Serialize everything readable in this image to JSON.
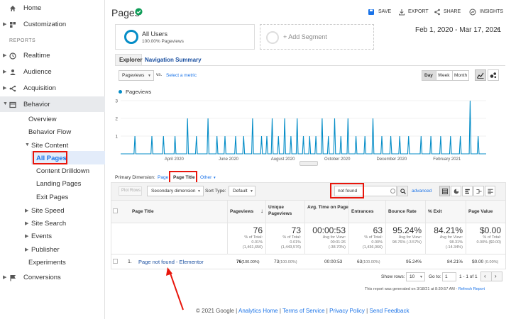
{
  "sidebar": {
    "items": [
      {
        "label": "Home"
      },
      {
        "label": "Customization"
      },
      {
        "label": "REPORTS"
      },
      {
        "label": "Realtime"
      },
      {
        "label": "Audience"
      },
      {
        "label": "Acquisition"
      },
      {
        "label": "Behavior"
      },
      {
        "label": "Overview"
      },
      {
        "label": "Behavior Flow"
      },
      {
        "label": "Site Content"
      },
      {
        "label": "All Pages"
      },
      {
        "label": "Content Drilldown"
      },
      {
        "label": "Landing Pages"
      },
      {
        "label": "Exit Pages"
      },
      {
        "label": "Site Speed"
      },
      {
        "label": "Site Search"
      },
      {
        "label": "Events"
      },
      {
        "label": "Publisher"
      },
      {
        "label": "Experiments"
      },
      {
        "label": "Conversions"
      }
    ]
  },
  "header": {
    "title": "Pages",
    "save": "SAVE",
    "export": "EXPORT",
    "share": "SHARE",
    "insights": "INSIGHTS"
  },
  "segment": {
    "name": "All Users",
    "sub": "100.00% Pageviews",
    "add": "+ Add Segment"
  },
  "date_range": "Feb 1, 2020 - Mar 17, 2021",
  "tabs": [
    "Explorer",
    "Navigation Summary"
  ],
  "chart_controls": {
    "metric": "Pageviews",
    "vs": "vs.",
    "select_metric": "Select a metric",
    "day": "Day",
    "week": "Week",
    "month": "Month"
  },
  "chart_data": {
    "type": "line",
    "series": [
      {
        "name": "Pageviews"
      }
    ],
    "x_ticks": [
      "April 2020",
      "June 2020",
      "August 2020",
      "October 2020",
      "December 2020",
      "February 2021"
    ],
    "y_ticks": [
      "3",
      "2",
      "1"
    ],
    "ylim": [
      0,
      3
    ],
    "color": "#058dc7",
    "spikes": [
      {
        "x": "2020-02-17",
        "y": 1
      },
      {
        "x": "2020-03-07",
        "y": 1
      },
      {
        "x": "2020-03-20",
        "y": 1
      },
      {
        "x": "2020-04-02",
        "y": 1
      },
      {
        "x": "2020-04-16",
        "y": 2
      },
      {
        "x": "2020-04-26",
        "y": 1
      },
      {
        "x": "2020-05-09",
        "y": 2
      },
      {
        "x": "2020-05-19",
        "y": 1
      },
      {
        "x": "2020-05-28",
        "y": 1
      },
      {
        "x": "2020-06-09",
        "y": 1
      },
      {
        "x": "2020-06-18",
        "y": 1
      },
      {
        "x": "2020-06-28",
        "y": 2
      },
      {
        "x": "2020-07-08",
        "y": 1
      },
      {
        "x": "2020-07-14",
        "y": 1
      },
      {
        "x": "2020-07-20",
        "y": 2
      },
      {
        "x": "2020-07-27",
        "y": 1
      },
      {
        "x": "2020-08-03",
        "y": 2
      },
      {
        "x": "2020-08-10",
        "y": 1
      },
      {
        "x": "2020-08-17",
        "y": 2
      },
      {
        "x": "2020-08-24",
        "y": 1
      },
      {
        "x": "2020-08-31",
        "y": 1
      },
      {
        "x": "2020-09-07",
        "y": 1
      },
      {
        "x": "2020-09-14",
        "y": 2
      },
      {
        "x": "2020-09-21",
        "y": 1
      },
      {
        "x": "2020-09-28",
        "y": 2
      },
      {
        "x": "2020-10-05",
        "y": 1
      },
      {
        "x": "2020-10-13",
        "y": 2
      },
      {
        "x": "2020-10-22",
        "y": 1
      },
      {
        "x": "2020-11-01",
        "y": 1
      },
      {
        "x": "2020-11-10",
        "y": 2
      },
      {
        "x": "2020-11-20",
        "y": 1
      },
      {
        "x": "2020-11-30",
        "y": 1
      },
      {
        "x": "2020-12-10",
        "y": 1
      },
      {
        "x": "2020-12-20",
        "y": 1
      },
      {
        "x": "2021-01-03",
        "y": 1
      },
      {
        "x": "2021-01-14",
        "y": 1
      },
      {
        "x": "2021-01-25",
        "y": 1
      },
      {
        "x": "2021-02-05",
        "y": 1
      },
      {
        "x": "2021-02-16",
        "y": 1
      },
      {
        "x": "2021-02-27",
        "y": 3
      },
      {
        "x": "2021-03-08",
        "y": 1
      }
    ]
  },
  "dimension": {
    "label": "Primary Dimension:",
    "page": "Page",
    "page_title": "Page Title",
    "other": "Other"
  },
  "toolbar": {
    "plot_rows": "Plot Rows",
    "secondary": "Secondary dimension",
    "sort_type": "Sort Type:",
    "sort_default": "Default",
    "search_value": "not found",
    "advanced": "advanced"
  },
  "table": {
    "headers": [
      "Page Title",
      "Pageviews",
      "Unique Pageviews",
      "Avg. Time on Page",
      "Entrances",
      "Bounce Rate",
      "% Exit",
      "Page Value"
    ],
    "totals": [
      {
        "value": "76",
        "l1": "% of Total:",
        "l2": "0.01%",
        "l3": "(1,461,650)"
      },
      {
        "value": "73",
        "l1": "% of Total:",
        "l2": "0.01%",
        "l3": "(1,443,576)"
      },
      {
        "value": "00:00:53",
        "l1": "Avg for View:",
        "l2": "00:01:26",
        "l3": "(-38.70%)"
      },
      {
        "value": "63",
        "l1": "% of Total:",
        "l2": "0.00%",
        "l3": "(1,436,066)"
      },
      {
        "value": "95.24%",
        "l1": "Avg for View:",
        "l2": "98.76% (-3.57%)",
        "l3": ""
      },
      {
        "value": "84.21%",
        "l1": "Avg for View:",
        "l2": "98.31%",
        "l3": "(-14.34%)"
      },
      {
        "value": "$0.00",
        "l1": "% of Total:",
        "l2": "0.00% ($0.00)",
        "l3": ""
      }
    ],
    "row": {
      "index": "1.",
      "title": "Page not found - Elementor",
      "pageviews": "76",
      "pageviews_pct": "(100.00%)",
      "unique": "73",
      "unique_pct": "(100.00%)",
      "avg_time": "00:00:53",
      "entrances": "63",
      "entrances_pct": "(100.00%)",
      "bounce": "95.24%",
      "exit": "84.21%",
      "value": "$0.00",
      "value_pct": "(0.00%)"
    }
  },
  "pagination": {
    "show_rows": "Show rows:",
    "rows": "10",
    "goto": "Go to:",
    "page": "1",
    "range": "1 - 1 of 1"
  },
  "generated": "This report was generated on 3/18/21 at 8:30:57 AM -",
  "refresh": "Refresh Report",
  "footer": {
    "copyright": "© 2021 Google |",
    "links": [
      "Analytics Home",
      "Terms of Service",
      "Privacy Policy",
      "Send Feedback"
    ],
    "sep": "|"
  },
  "colors": {
    "accent": "#1a73e8",
    "annotation": "#e8160c",
    "series": "#058dc7",
    "brand_green": "#0f9d58"
  }
}
